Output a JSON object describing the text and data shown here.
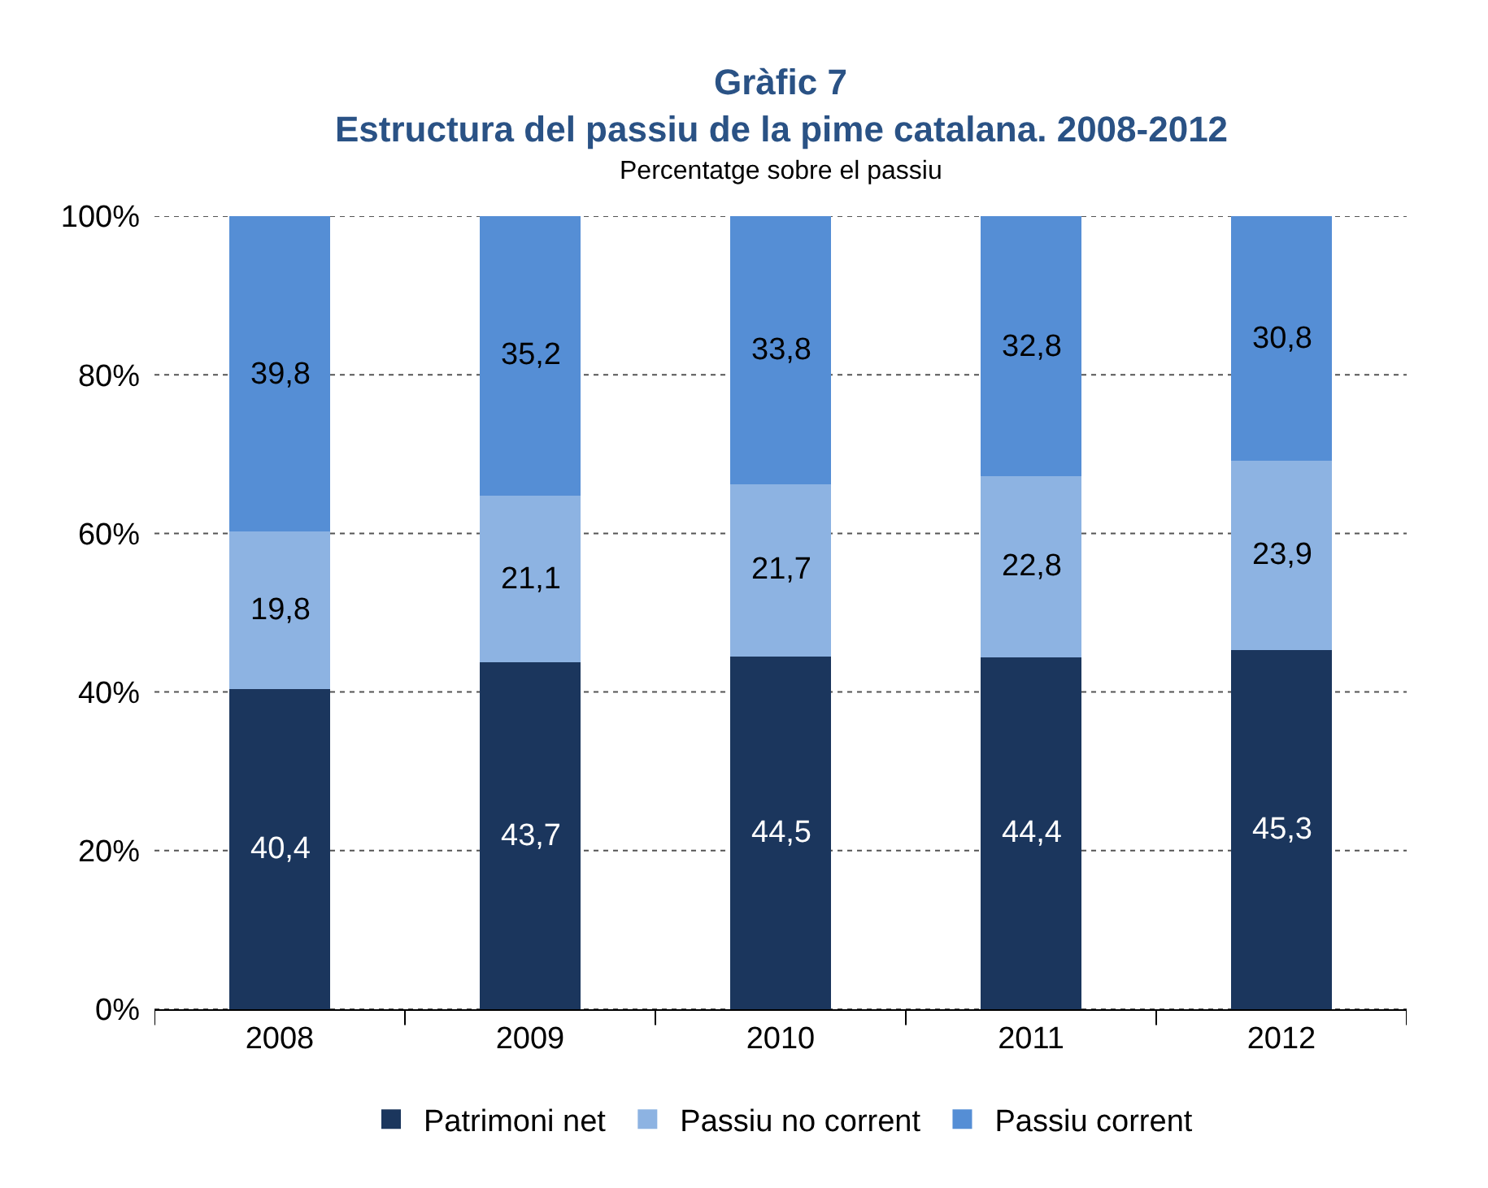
{
  "chart_data": {
    "type": "bar",
    "title": "Gràfic 7",
    "subtitle": "Estructura del passiu de la pime catalana. 2008-2012",
    "ylabel": "Percentatge sobre el passiu",
    "categories": [
      "2008",
      "2009",
      "2010",
      "2011",
      "2012"
    ],
    "series": [
      {
        "name": "Patrimoni net",
        "color": "#1b365d",
        "values": [
          40.4,
          43.7,
          44.5,
          44.4,
          45.3
        ],
        "value_labels": [
          "40,4",
          "43,7",
          "44,5",
          "44,4",
          "45,3"
        ]
      },
      {
        "name": "Passiu no corrent",
        "color": "#8db3e2",
        "values": [
          19.8,
          21.1,
          21.7,
          22.8,
          23.9
        ],
        "value_labels": [
          "19,8",
          "21,1",
          "21,7",
          "22,8",
          "23,9"
        ]
      },
      {
        "name": "Passiu corrent",
        "color": "#558ed5",
        "values": [
          39.8,
          35.2,
          33.8,
          32.8,
          30.8
        ],
        "value_labels": [
          "39,8",
          "35,2",
          "33,8",
          "32,8",
          "30,8"
        ]
      }
    ],
    "stacked": true,
    "ylim": [
      0,
      100
    ],
    "yticks": [
      {
        "value": 0,
        "label": "0%"
      },
      {
        "value": 20,
        "label": "20%"
      },
      {
        "value": 40,
        "label": "40%"
      },
      {
        "value": 60,
        "label": "60%"
      },
      {
        "value": 80,
        "label": "80%"
      },
      {
        "value": 100,
        "label": "100%"
      }
    ],
    "grid": "y",
    "legend": "bottom"
  }
}
